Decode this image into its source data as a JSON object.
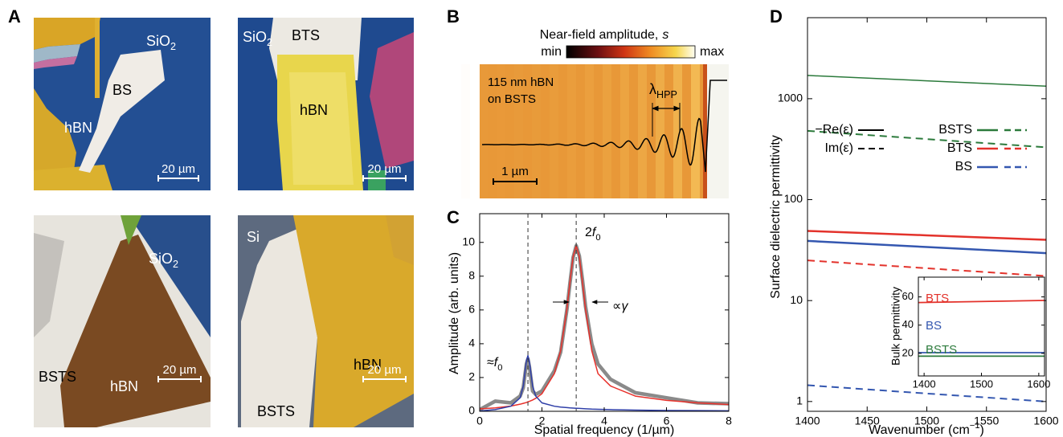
{
  "panel_labels": [
    "A",
    "B",
    "C",
    "D"
  ],
  "micrographs": [
    {
      "labels": [
        {
          "text": "SiO",
          "sub": "2"
        },
        {
          "text": "hBN"
        },
        {
          "text": "BS"
        }
      ],
      "scale_bar": "20 µm"
    },
    {
      "labels": [
        {
          "text": "SiO",
          "sub": "2"
        },
        {
          "text": "BTS"
        },
        {
          "text": "hBN"
        }
      ],
      "scale_bar": "20 µm"
    },
    {
      "labels": [
        {
          "text": "SiO",
          "sub": "2"
        },
        {
          "text": "BSTS"
        },
        {
          "text": "hBN"
        }
      ],
      "scale_bar": "20 µm"
    },
    {
      "labels": [
        {
          "text": "Si"
        },
        {
          "text": "hBN"
        },
        {
          "text": "BSTS"
        }
      ],
      "scale_bar": "20 µm"
    }
  ],
  "near_field": {
    "colorbar_title": "Near-field amplitude,",
    "colorbar_title_symbol": "s",
    "colorbar_min": "min",
    "colorbar_max": "max",
    "sample_lines": [
      "115 nm hBN",
      "on BSTS"
    ],
    "wavelength_label": {
      "text": "λ",
      "sub": "HPP"
    },
    "scale_bar": "1 µm"
  },
  "chart_data": [
    {
      "type": "line",
      "x_label": "Spatial frequency (1/µm)",
      "y_label": "Amplitude (arb. units)",
      "x": [
        0,
        0.5,
        1,
        1.3,
        1.4,
        1.5,
        1.55,
        1.6,
        1.7,
        1.8,
        2,
        2.4,
        2.6,
        2.8,
        2.9,
        3.0,
        3.1,
        3.2,
        3.3,
        3.4,
        3.6,
        3.8,
        4.2,
        5,
        6,
        7,
        8
      ],
      "series": [
        {
          "color": "#8a8a8a",
          "values": [
            0.1,
            0.6,
            0.5,
            0.9,
            1.4,
            2.8,
            3.1,
            2.6,
            1.2,
            1.0,
            1.2,
            2.4,
            3.5,
            6.0,
            7.6,
            9.1,
            9.8,
            9.2,
            7.8,
            6.2,
            4.0,
            2.8,
            1.9,
            1.1,
            0.8,
            0.5,
            0.45
          ]
        },
        {
          "color": "#e8302a",
          "values": [
            0.14,
            0.2,
            0.31,
            0.42,
            0.47,
            0.52,
            0.56,
            0.59,
            0.67,
            0.77,
            1.04,
            2.23,
            3.59,
            6.03,
            7.66,
            9.16,
            9.8,
            9.16,
            7.66,
            6.03,
            3.59,
            2.23,
            1.5,
            0.9,
            0.65,
            0.5,
            0.4
          ]
        },
        {
          "color": "#2f3fa8",
          "values": [
            0.02,
            0.1,
            0.3,
            0.8,
            1.5,
            3.0,
            3.3,
            2.9,
            1.5,
            0.9,
            0.5,
            0.3,
            0.25,
            0.22,
            0.2,
            0.19,
            0.18,
            0.17,
            0.16,
            0.15,
            0.13,
            0.12,
            0.1,
            0.07,
            0.05,
            0.04,
            0.03
          ]
        }
      ],
      "vlines": [
        1.55,
        3.1
      ],
      "annotations": [
        {
          "prefix": "≈",
          "symbol": "f",
          "sub": "0"
        },
        {
          "prefix": "2",
          "symbol": "f",
          "sub": "0"
        },
        {
          "prefix": "∝",
          "symbol": "γ"
        }
      ],
      "xlim": [
        0,
        8
      ],
      "ylim": [
        0,
        11.7
      ],
      "xticks": [
        0,
        2,
        4,
        6,
        8
      ],
      "yticks": [
        0,
        2,
        4,
        6,
        8,
        10
      ]
    },
    {
      "type": "line",
      "log_y": true,
      "x_label": "Wavenumber (cm",
      "x_label_sup": "−1",
      "x_label_end": ")",
      "y_label": "Surface dielectric permittivity",
      "x": [
        1400,
        1500,
        1600
      ],
      "series": [
        {
          "name": "BSTS",
          "color": "#2b7a3b",
          "values": [
            1700,
            1504,
            1330
          ],
          "im_values": [
            480,
            398,
            330
          ]
        },
        {
          "name": "BTS",
          "color": "#e3322b",
          "values": [
            49,
            44.3,
            40
          ],
          "im_values": [
            25,
            20.9,
            17.5
          ]
        },
        {
          "name": "BS",
          "color": "#3457b0",
          "values": [
            39,
            33.9,
            29.5
          ],
          "im_values": [
            1.45,
            1.2,
            1.0
          ]
        }
      ],
      "line_styles": [
        "−Re(ε)",
        "Im(ε)"
      ],
      "xlim": [
        1400,
        1600
      ],
      "ylim": [
        0.8,
        6350
      ],
      "xticks": [
        1400,
        1450,
        1500,
        1550,
        1600
      ],
      "yticks": [
        1,
        10,
        100,
        1000
      ]
    },
    {
      "type": "line",
      "y_label": "Bulk permittivity",
      "x": [
        1390,
        1610
      ],
      "series": [
        {
          "name": "BTS",
          "color": "#e3322b",
          "values": [
            56,
            57.5
          ]
        },
        {
          "name": "BS",
          "color": "#3457b0",
          "values": [
            20.5,
            20.5
          ]
        },
        {
          "name": "BSTS",
          "color": "#2b7a3b",
          "values": [
            18,
            18
          ]
        }
      ],
      "xlim": [
        1390,
        1610
      ],
      "ylim": [
        4,
        74
      ],
      "xticks": [
        1400,
        1500,
        1600
      ],
      "yticks": [
        20,
        40,
        60
      ]
    }
  ]
}
